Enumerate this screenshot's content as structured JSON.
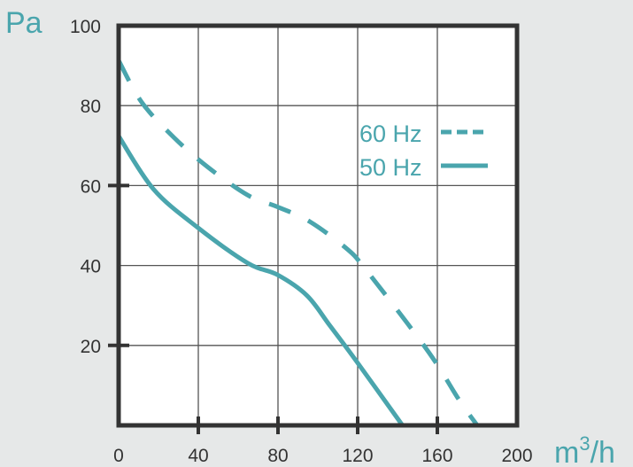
{
  "chart_data": {
    "type": "line",
    "xlabel": "m³/h",
    "xlabel_base": "m",
    "xlabel_sup": "3",
    "xlabel_tail": "/h",
    "ylabel": "Pa",
    "xlim": [
      0,
      200
    ],
    "ylim": [
      0,
      100
    ],
    "xticks": [
      "0",
      "40",
      "80",
      "120",
      "160",
      "200"
    ],
    "yticks": [
      "20",
      "40",
      "60",
      "80",
      "100"
    ],
    "grid": true,
    "legend_placement": "top-right",
    "colors": {
      "series": "#4aa5ad",
      "frame": "#333333",
      "background": "#e6e8e8"
    },
    "series": [
      {
        "name": "60 Hz",
        "style": "dashed",
        "x": [
          0,
          11.5,
          27.8,
          44.8,
          64.8,
          79.6,
          95.9,
          115,
          124,
          145,
          159,
          171,
          180
        ],
        "y": [
          91.3,
          80.9,
          72,
          64.6,
          57.6,
          54.7,
          51,
          44,
          39,
          25.5,
          15.9,
          6.3,
          0
        ]
      },
      {
        "name": "50 Hz",
        "style": "solid",
        "x": [
          0,
          17.5,
          39.7,
          64.8,
          79.6,
          94.5,
          106,
          119.6,
          142.5
        ],
        "y": [
          72.4,
          59.1,
          49.5,
          40.6,
          37.7,
          32.5,
          25,
          15.9,
          0
        ]
      }
    ]
  }
}
